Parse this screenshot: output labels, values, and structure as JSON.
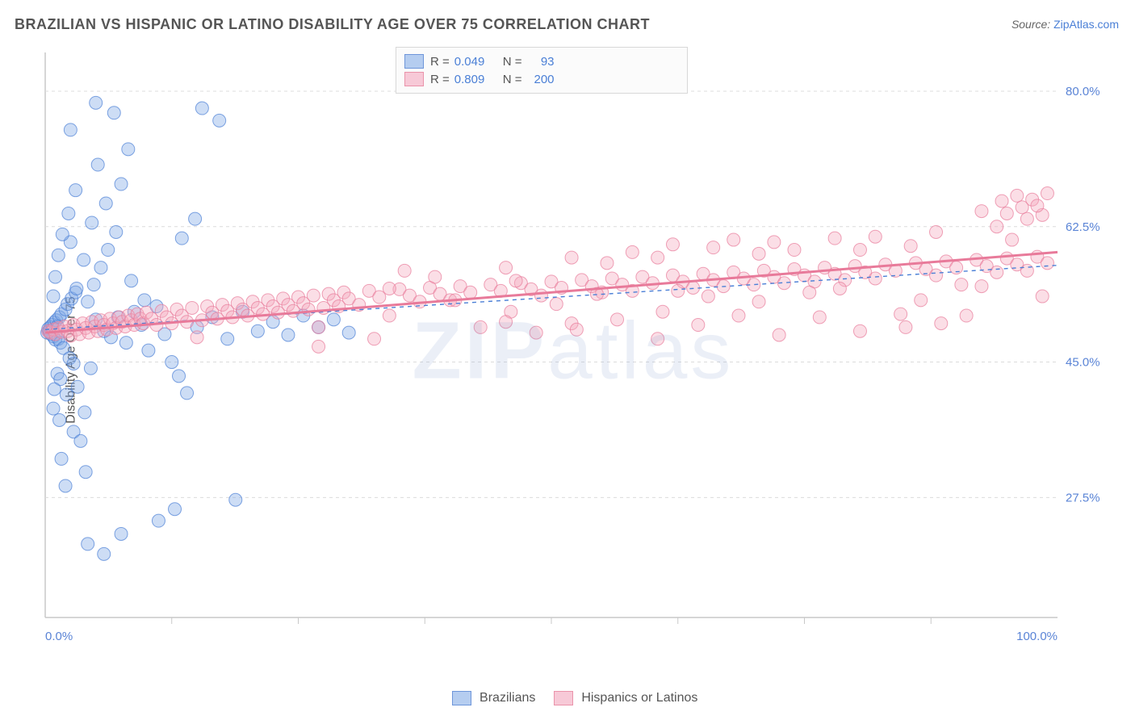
{
  "title": "BRAZILIAN VS HISPANIC OR LATINO DISABILITY AGE OVER 75 CORRELATION CHART",
  "source_label": "Source:",
  "source_name": "ZipAtlas.com",
  "watermark": "ZIPatlas",
  "ylabel": "Disability Age Over 75",
  "chart": {
    "type": "scatter",
    "xlim": [
      0,
      100
    ],
    "ylim": [
      12,
      85
    ],
    "x_tick_labels": [
      "0.0%",
      "100.0%"
    ],
    "y_tick_labels": [
      "27.5%",
      "45.0%",
      "62.5%",
      "80.0%"
    ],
    "y_tick_values": [
      27.5,
      45.0,
      62.5,
      80.0
    ],
    "x_minor_ticks": [
      12.5,
      25,
      37.5,
      50,
      62.5,
      75,
      87.5
    ],
    "background_color": "#ffffff",
    "grid_color": "#dcdcdc",
    "axis_text_color": "#5a84d6",
    "marker_radius": 8,
    "marker_opacity": 0.38,
    "marker_stroke_opacity": 0.7,
    "series": [
      {
        "name": "Brazilians",
        "fill": "#7ba6e4",
        "stroke": "#4a7fd6",
        "r": 0.049,
        "n": 93,
        "trend_dash": "5,5",
        "trend_width": 1.4,
        "trend": {
          "x1": 0,
          "y1": 49.2,
          "x2": 100,
          "y2": 57.5
        },
        "points": [
          [
            0.2,
            48.8
          ],
          [
            0.3,
            49.3
          ],
          [
            0.4,
            49.0
          ],
          [
            0.5,
            49.5
          ],
          [
            0.6,
            48.6
          ],
          [
            0.7,
            49.8
          ],
          [
            0.8,
            48.3
          ],
          [
            0.9,
            50.1
          ],
          [
            1.0,
            47.9
          ],
          [
            1.1,
            50.4
          ],
          [
            1.2,
            49.6
          ],
          [
            1.3,
            48.0
          ],
          [
            1.4,
            50.8
          ],
          [
            1.5,
            47.5
          ],
          [
            1.6,
            51.2
          ],
          [
            1.8,
            46.8
          ],
          [
            2.0,
            51.8
          ],
          [
            2.2,
            52.5
          ],
          [
            2.4,
            45.5
          ],
          [
            2.6,
            53.2
          ],
          [
            2.8,
            44.8
          ],
          [
            3.0,
            54.0
          ],
          [
            1.2,
            43.5
          ],
          [
            1.5,
            42.8
          ],
          [
            0.9,
            41.5
          ],
          [
            2.1,
            40.8
          ],
          [
            0.8,
            39.0
          ],
          [
            1.4,
            37.5
          ],
          [
            2.8,
            36.0
          ],
          [
            3.5,
            34.8
          ],
          [
            1.6,
            32.5
          ],
          [
            4.0,
            30.8
          ],
          [
            2.0,
            29.0
          ],
          [
            3.2,
            41.8
          ],
          [
            4.5,
            44.2
          ],
          [
            5.0,
            50.5
          ],
          [
            5.8,
            49.0
          ],
          [
            6.5,
            48.2
          ],
          [
            7.2,
            50.8
          ],
          [
            8.0,
            47.5
          ],
          [
            8.8,
            51.5
          ],
          [
            9.5,
            49.8
          ],
          [
            10.2,
            46.5
          ],
          [
            11.0,
            52.2
          ],
          [
            11.8,
            48.6
          ],
          [
            12.5,
            45.0
          ],
          [
            13.2,
            43.2
          ],
          [
            14.0,
            41.0
          ],
          [
            4.2,
            52.8
          ],
          [
            4.8,
            55.0
          ],
          [
            5.5,
            57.2
          ],
          [
            6.2,
            59.5
          ],
          [
            7.0,
            61.8
          ],
          [
            8.5,
            55.5
          ],
          [
            9.8,
            53.0
          ],
          [
            3.8,
            58.2
          ],
          [
            2.5,
            60.5
          ],
          [
            4.6,
            63.0
          ],
          [
            6.0,
            65.5
          ],
          [
            7.5,
            68.0
          ],
          [
            5.2,
            70.5
          ],
          [
            3.0,
            67.2
          ],
          [
            0.8,
            53.5
          ],
          [
            1.0,
            56.0
          ],
          [
            1.3,
            58.8
          ],
          [
            1.7,
            61.5
          ],
          [
            2.3,
            64.2
          ],
          [
            3.1,
            54.5
          ],
          [
            3.9,
            38.5
          ],
          [
            15.0,
            49.5
          ],
          [
            16.5,
            50.8
          ],
          [
            18.0,
            48.0
          ],
          [
            19.5,
            51.5
          ],
          [
            21.0,
            49.0
          ],
          [
            22.5,
            50.2
          ],
          [
            24.0,
            48.5
          ],
          [
            25.5,
            51.0
          ],
          [
            27.0,
            49.5
          ],
          [
            28.5,
            50.5
          ],
          [
            30.0,
            48.8
          ],
          [
            15.5,
            77.8
          ],
          [
            17.2,
            76.2
          ],
          [
            18.8,
            27.2
          ],
          [
            13.5,
            61.0
          ],
          [
            14.8,
            63.5
          ],
          [
            5.0,
            78.5
          ],
          [
            6.8,
            77.2
          ],
          [
            8.2,
            72.5
          ],
          [
            4.2,
            21.5
          ],
          [
            5.8,
            20.2
          ],
          [
            7.5,
            22.8
          ],
          [
            11.2,
            24.5
          ],
          [
            12.8,
            26.0
          ],
          [
            2.5,
            75.0
          ]
        ]
      },
      {
        "name": "Hispanics or Latinos",
        "fill": "#f4a8bd",
        "stroke": "#e87a9a",
        "r": 0.809,
        "n": 200,
        "trend_dash": "0",
        "trend_width": 3,
        "trend": {
          "x1": 0,
          "y1": 48.8,
          "x2": 100,
          "y2": 59.2
        },
        "points": [
          [
            0.3,
            49.0
          ],
          [
            0.5,
            48.8
          ],
          [
            0.8,
            49.2
          ],
          [
            1.0,
            48.6
          ],
          [
            1.3,
            49.4
          ],
          [
            1.6,
            48.9
          ],
          [
            1.9,
            49.6
          ],
          [
            2.2,
            49.0
          ],
          [
            2.5,
            48.4
          ],
          [
            2.8,
            49.8
          ],
          [
            3.1,
            49.2
          ],
          [
            3.4,
            48.6
          ],
          [
            3.7,
            50.0
          ],
          [
            4.0,
            49.4
          ],
          [
            4.3,
            48.8
          ],
          [
            4.6,
            50.2
          ],
          [
            4.9,
            49.6
          ],
          [
            5.2,
            49.0
          ],
          [
            5.5,
            50.4
          ],
          [
            5.8,
            49.8
          ],
          [
            6.1,
            49.2
          ],
          [
            6.4,
            50.6
          ],
          [
            6.7,
            50.0
          ],
          [
            7.0,
            49.4
          ],
          [
            7.3,
            50.8
          ],
          [
            7.6,
            50.2
          ],
          [
            7.9,
            49.6
          ],
          [
            8.2,
            51.0
          ],
          [
            8.5,
            50.4
          ],
          [
            8.8,
            49.8
          ],
          [
            9.1,
            51.2
          ],
          [
            9.4,
            50.6
          ],
          [
            9.7,
            50.0
          ],
          [
            10.0,
            51.4
          ],
          [
            10.5,
            50.6
          ],
          [
            11.0,
            49.8
          ],
          [
            11.5,
            51.6
          ],
          [
            12.0,
            50.8
          ],
          [
            12.5,
            50.0
          ],
          [
            13.0,
            51.8
          ],
          [
            13.5,
            51.0
          ],
          [
            14.0,
            50.2
          ],
          [
            14.5,
            52.0
          ],
          [
            15.0,
            48.2
          ],
          [
            15.5,
            50.4
          ],
          [
            16.0,
            52.2
          ],
          [
            16.5,
            51.4
          ],
          [
            17.0,
            50.6
          ],
          [
            17.5,
            52.4
          ],
          [
            18.0,
            51.6
          ],
          [
            18.5,
            50.8
          ],
          [
            19.0,
            52.6
          ],
          [
            19.5,
            51.8
          ],
          [
            20.0,
            51.0
          ],
          [
            20.5,
            52.8
          ],
          [
            21.0,
            52.0
          ],
          [
            21.5,
            51.2
          ],
          [
            22.0,
            53.0
          ],
          [
            22.5,
            52.2
          ],
          [
            23.0,
            51.4
          ],
          [
            23.5,
            53.2
          ],
          [
            24.0,
            52.4
          ],
          [
            24.5,
            51.6
          ],
          [
            25.0,
            53.4
          ],
          [
            25.5,
            52.6
          ],
          [
            26.0,
            51.8
          ],
          [
            26.5,
            53.6
          ],
          [
            27.0,
            47.0
          ],
          [
            27.5,
            52.0
          ],
          [
            28.0,
            53.8
          ],
          [
            28.5,
            53.0
          ],
          [
            29.0,
            52.2
          ],
          [
            29.5,
            54.0
          ],
          [
            30.0,
            53.2
          ],
          [
            31.0,
            52.4
          ],
          [
            32.0,
            54.2
          ],
          [
            33.0,
            53.4
          ],
          [
            34.0,
            51.0
          ],
          [
            35.0,
            54.4
          ],
          [
            36.0,
            53.6
          ],
          [
            37.0,
            52.8
          ],
          [
            38.0,
            54.6
          ],
          [
            39.0,
            53.8
          ],
          [
            40.0,
            53.0
          ],
          [
            41.0,
            54.8
          ],
          [
            42.0,
            54.0
          ],
          [
            43.0,
            49.5
          ],
          [
            44.0,
            55.0
          ],
          [
            45.0,
            54.2
          ],
          [
            46.0,
            51.5
          ],
          [
            47.0,
            55.2
          ],
          [
            48.0,
            54.4
          ],
          [
            49.0,
            53.6
          ],
          [
            50.0,
            55.4
          ],
          [
            51.0,
            54.6
          ],
          [
            52.0,
            50.0
          ],
          [
            53.0,
            55.6
          ],
          [
            54.0,
            54.8
          ],
          [
            55.0,
            54.0
          ],
          [
            56.0,
            55.8
          ],
          [
            57.0,
            55.0
          ],
          [
            58.0,
            54.2
          ],
          [
            59.0,
            56.0
          ],
          [
            60.0,
            55.2
          ],
          [
            61.0,
            51.5
          ],
          [
            62.0,
            56.2
          ],
          [
            63.0,
            55.4
          ],
          [
            64.0,
            54.6
          ],
          [
            65.0,
            56.4
          ],
          [
            66.0,
            55.6
          ],
          [
            67.0,
            54.8
          ],
          [
            68.0,
            56.6
          ],
          [
            69.0,
            55.8
          ],
          [
            70.0,
            55.0
          ],
          [
            71.0,
            56.8
          ],
          [
            72.0,
            56.0
          ],
          [
            73.0,
            55.2
          ],
          [
            74.0,
            57.0
          ],
          [
            75.0,
            56.2
          ],
          [
            76.0,
            55.4
          ],
          [
            77.0,
            57.2
          ],
          [
            78.0,
            56.4
          ],
          [
            79.0,
            55.6
          ],
          [
            80.0,
            57.4
          ],
          [
            81.0,
            56.6
          ],
          [
            82.0,
            55.8
          ],
          [
            83.0,
            57.6
          ],
          [
            84.0,
            56.8
          ],
          [
            85.0,
            49.5
          ],
          [
            86.0,
            57.8
          ],
          [
            87.0,
            57.0
          ],
          [
            88.0,
            56.2
          ],
          [
            89.0,
            58.0
          ],
          [
            90.0,
            57.2
          ],
          [
            91.0,
            51.0
          ],
          [
            92.0,
            58.2
          ],
          [
            93.0,
            57.4
          ],
          [
            94.0,
            56.6
          ],
          [
            95.0,
            58.4
          ],
          [
            96.0,
            57.6
          ],
          [
            97.0,
            56.8
          ],
          [
            98.0,
            58.6
          ],
          [
            99.0,
            57.8
          ],
          [
            45.5,
            50.2
          ],
          [
            48.5,
            48.8
          ],
          [
            52.5,
            49.2
          ],
          [
            56.5,
            50.5
          ],
          [
            60.5,
            48.0
          ],
          [
            64.5,
            49.8
          ],
          [
            68.5,
            51.0
          ],
          [
            72.5,
            48.5
          ],
          [
            76.5,
            50.8
          ],
          [
            80.5,
            49.0
          ],
          [
            84.5,
            51.2
          ],
          [
            88.5,
            50.0
          ],
          [
            35.5,
            56.8
          ],
          [
            40.5,
            53.0
          ],
          [
            45.5,
            57.2
          ],
          [
            50.5,
            52.5
          ],
          [
            55.5,
            57.8
          ],
          [
            60.5,
            58.5
          ],
          [
            65.5,
            53.5
          ],
          [
            70.5,
            59.0
          ],
          [
            75.5,
            54.0
          ],
          [
            80.5,
            59.5
          ],
          [
            85.5,
            60.0
          ],
          [
            90.5,
            55.0
          ],
          [
            95.5,
            60.8
          ],
          [
            62.0,
            60.2
          ],
          [
            68.0,
            60.8
          ],
          [
            74.0,
            59.5
          ],
          [
            82.0,
            61.2
          ],
          [
            88.0,
            61.8
          ],
          [
            94.0,
            62.5
          ],
          [
            97.0,
            63.5
          ],
          [
            98.5,
            64.0
          ],
          [
            96.5,
            65.0
          ],
          [
            94.5,
            65.8
          ],
          [
            92.5,
            64.5
          ],
          [
            96.0,
            66.5
          ],
          [
            97.5,
            66.0
          ],
          [
            98.0,
            65.2
          ],
          [
            99.0,
            66.8
          ],
          [
            95.0,
            64.2
          ],
          [
            78.0,
            61.0
          ],
          [
            72.0,
            60.5
          ],
          [
            66.0,
            59.8
          ],
          [
            58.0,
            59.2
          ],
          [
            52.0,
            58.5
          ],
          [
            32.5,
            48.0
          ],
          [
            38.5,
            56.0
          ],
          [
            46.5,
            55.5
          ],
          [
            54.5,
            53.8
          ],
          [
            62.5,
            54.2
          ],
          [
            70.5,
            52.8
          ],
          [
            78.5,
            54.5
          ],
          [
            86.5,
            53.0
          ],
          [
            92.5,
            54.8
          ],
          [
            98.5,
            53.5
          ],
          [
            34.0,
            54.5
          ],
          [
            27.0,
            49.5
          ]
        ]
      }
    ]
  },
  "legend_top": {
    "r_label": "R =",
    "n_label": "N ="
  },
  "legend_bottom": {
    "items": [
      "Brazilians",
      "Hispanics or Latinos"
    ]
  }
}
